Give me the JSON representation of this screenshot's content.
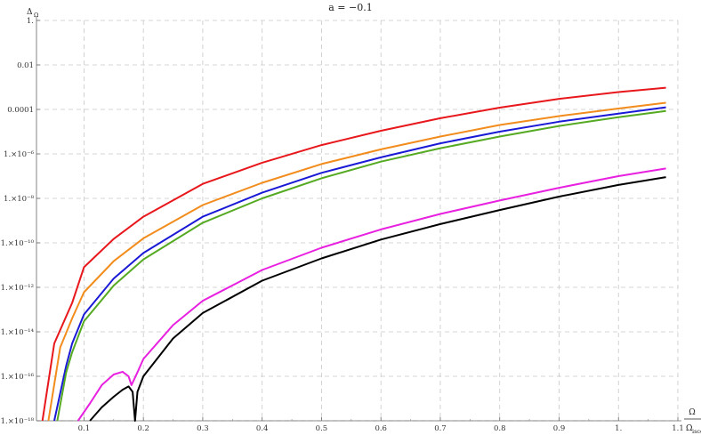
{
  "chart_data": {
    "type": "line",
    "title": "a = −0.1",
    "ylabel": "Δ",
    "ylabel_sub": "Ω",
    "xlabel_num": "Ω",
    "xlabel_den": "Ω",
    "xlabel_den_sub": "isco",
    "yscale": "log",
    "xlim": [
      0.02,
      1.1
    ],
    "ylim": [
      1e-18,
      1
    ],
    "grid": true,
    "xticks": [
      {
        "v": 0.1,
        "label": "0.1"
      },
      {
        "v": 0.2,
        "label": "0.2"
      },
      {
        "v": 0.3,
        "label": "0.3"
      },
      {
        "v": 0.4,
        "label": "0.4"
      },
      {
        "v": 0.5,
        "label": "0.5"
      },
      {
        "v": 0.6,
        "label": "0.6"
      },
      {
        "v": 0.7,
        "label": "0.7"
      },
      {
        "v": 0.8,
        "label": "0.8"
      },
      {
        "v": 0.9,
        "label": "0.9"
      },
      {
        "v": 1.0,
        "label": "1."
      },
      {
        "v": 1.1,
        "label": "1.1"
      }
    ],
    "yticks": [
      {
        "v": 1,
        "label": "1."
      },
      {
        "v": 0.01,
        "label": "0.01"
      },
      {
        "v": 0.0001,
        "label": "0.0001"
      },
      {
        "v": 1e-06,
        "label": "1.×10⁻⁶"
      },
      {
        "v": 1e-08,
        "label": "1.×10⁻⁸"
      },
      {
        "v": 1e-10,
        "label": "1.×10⁻¹⁰"
      },
      {
        "v": 1e-12,
        "label": "1.×10⁻¹²"
      },
      {
        "v": 1e-14,
        "label": "1.×10⁻¹⁴"
      },
      {
        "v": 1e-16,
        "label": "1.×10⁻¹⁶"
      },
      {
        "v": 1e-18,
        "label": "1.×10⁻¹⁸"
      }
    ],
    "series": [
      {
        "color": "#e8171b",
        "points": [
          [
            0.03,
            1e-18
          ],
          [
            0.05,
            3e-15
          ],
          [
            0.08,
            2e-13
          ],
          [
            0.1,
            8e-12
          ],
          [
            0.15,
            1.5e-10
          ],
          [
            0.2,
            1.5e-09
          ],
          [
            0.3,
            4.5e-08
          ],
          [
            0.4,
            4e-07
          ],
          [
            0.5,
            2.5e-06
          ],
          [
            0.6,
            1.1e-05
          ],
          [
            0.7,
            4e-05
          ],
          [
            0.8,
            0.00012
          ],
          [
            0.9,
            0.0003
          ],
          [
            1.0,
            0.0006
          ],
          [
            1.08,
            0.00095
          ]
        ]
      },
      {
        "color": "#f28c1c",
        "points": [
          [
            0.04,
            1e-18
          ],
          [
            0.06,
            2e-15
          ],
          [
            0.08,
            4e-14
          ],
          [
            0.1,
            6e-13
          ],
          [
            0.15,
            1.5e-11
          ],
          [
            0.2,
            1.6e-10
          ],
          [
            0.3,
            5e-09
          ],
          [
            0.4,
            5e-08
          ],
          [
            0.5,
            3.5e-07
          ],
          [
            0.6,
            1.6e-06
          ],
          [
            0.7,
            6e-06
          ],
          [
            0.8,
            2e-05
          ],
          [
            0.9,
            5e-05
          ],
          [
            1.0,
            0.00011
          ],
          [
            1.08,
            0.0002
          ]
        ]
      },
      {
        "color": "#1a1ad6",
        "points": [
          [
            0.05,
            1e-18
          ],
          [
            0.07,
            3e-16
          ],
          [
            0.08,
            3e-15
          ],
          [
            0.1,
            6e-14
          ],
          [
            0.15,
            2.5e-12
          ],
          [
            0.2,
            3.5e-11
          ],
          [
            0.3,
            1.5e-09
          ],
          [
            0.4,
            1.8e-08
          ],
          [
            0.5,
            1.4e-07
          ],
          [
            0.6,
            7e-07
          ],
          [
            0.7,
            3e-06
          ],
          [
            0.8,
            1e-05
          ],
          [
            0.9,
            2.8e-05
          ],
          [
            1.0,
            6.5e-05
          ],
          [
            1.08,
            0.000125
          ]
        ]
      },
      {
        "color": "#55aa22",
        "points": [
          [
            0.055,
            1e-18
          ],
          [
            0.07,
            1.5e-16
          ],
          [
            0.08,
            1.2e-15
          ],
          [
            0.1,
            3e-14
          ],
          [
            0.15,
            1.2e-12
          ],
          [
            0.2,
            1.8e-11
          ],
          [
            0.3,
            8e-10
          ],
          [
            0.4,
            1e-08
          ],
          [
            0.5,
            8e-08
          ],
          [
            0.6,
            4.5e-07
          ],
          [
            0.7,
            1.8e-06
          ],
          [
            0.8,
            6e-06
          ],
          [
            0.9,
            1.8e-05
          ],
          [
            1.0,
            4.5e-05
          ],
          [
            1.08,
            8.5e-05
          ]
        ]
      },
      {
        "color": "#e820e0",
        "points": [
          [
            0.09,
            1e-18
          ],
          [
            0.11,
            6e-18
          ],
          [
            0.13,
            4e-17
          ],
          [
            0.15,
            1.2e-16
          ],
          [
            0.165,
            1.6e-16
          ],
          [
            0.175,
            1e-16
          ],
          [
            0.18,
            4e-17
          ],
          [
            0.19,
            1.5e-16
          ],
          [
            0.2,
            6e-16
          ],
          [
            0.25,
            2e-14
          ],
          [
            0.3,
            2.5e-13
          ],
          [
            0.4,
            6e-12
          ],
          [
            0.5,
            6e-11
          ],
          [
            0.6,
            4e-10
          ],
          [
            0.7,
            2e-09
          ],
          [
            0.8,
            8e-09
          ],
          [
            0.9,
            3e-08
          ],
          [
            1.0,
            1e-07
          ],
          [
            1.08,
            2.2e-07
          ]
        ]
      },
      {
        "color": "#000000",
        "points": [
          [
            0.11,
            1e-18
          ],
          [
            0.13,
            4e-18
          ],
          [
            0.15,
            1.2e-17
          ],
          [
            0.165,
            2.5e-17
          ],
          [
            0.175,
            3.5e-17
          ],
          [
            0.182,
            2e-17
          ],
          [
            0.186,
            1e-18
          ],
          [
            0.19,
            2e-17
          ],
          [
            0.2,
            1e-16
          ],
          [
            0.25,
            5e-15
          ],
          [
            0.3,
            7e-14
          ],
          [
            0.4,
            2e-12
          ],
          [
            0.5,
            2e-11
          ],
          [
            0.6,
            1.4e-10
          ],
          [
            0.7,
            7e-10
          ],
          [
            0.8,
            3e-09
          ],
          [
            0.9,
            1.2e-08
          ],
          [
            1.0,
            4e-08
          ],
          [
            1.08,
            9e-08
          ]
        ]
      }
    ]
  }
}
